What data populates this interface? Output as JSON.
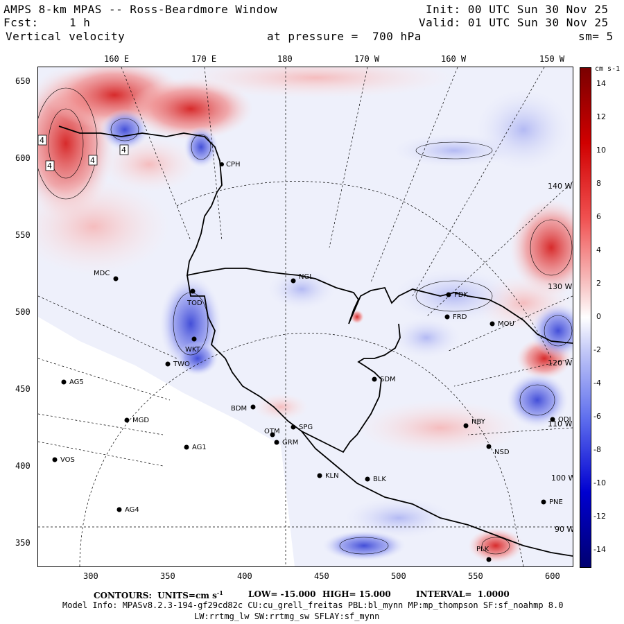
{
  "header": {
    "title": "AMPS 8-km MPAS -- Ross-Beardmore Window",
    "fcst_label": "Fcst:",
    "fcst_value": "1 h",
    "field": "Vertical velocity",
    "pressure_text": "at pressure =  700 hPa",
    "init": "Init: 00 UTC Sun 30 Nov 25",
    "valid": "Valid: 01 UTC Sun 30 Nov 25",
    "smooth": "sm= 5"
  },
  "axes": {
    "top_ticks": [
      "160 E",
      "170 E",
      "180",
      "170 W",
      "160 W",
      "150 W"
    ],
    "left_ticks": [
      "650",
      "600",
      "550",
      "500",
      "450",
      "400",
      "350"
    ],
    "bottom_ticks": [
      "300",
      "350",
      "400",
      "450",
      "500",
      "550",
      "600"
    ],
    "right_lon_labels": [
      "140 W",
      "130 W",
      "120 W",
      "110 W",
      "100 W",
      "90 W"
    ]
  },
  "colorbar": {
    "units": "cm s-1",
    "tick_labels": [
      "14",
      "12",
      "10",
      "8",
      "6",
      "4",
      "2",
      "0",
      "-2",
      "-4",
      "-6",
      "-8",
      "-10",
      "-12",
      "-14"
    ],
    "range": [
      -15,
      15
    ],
    "colors": {
      "pos": "#b30000",
      "neg": "#0000b3",
      "zero": "#ffffff"
    }
  },
  "stations": [
    {
      "name": "CPH"
    },
    {
      "name": "NGL"
    },
    {
      "name": "MDC"
    },
    {
      "name": "FDK"
    },
    {
      "name": "FRD"
    },
    {
      "name": "MOU"
    },
    {
      "name": "TOD"
    },
    {
      "name": "WKT"
    },
    {
      "name": "TWO"
    },
    {
      "name": "SDM"
    },
    {
      "name": "AG5"
    },
    {
      "name": "BDM"
    },
    {
      "name": "MGD"
    },
    {
      "name": "OTM"
    },
    {
      "name": "SPG"
    },
    {
      "name": "GRM"
    },
    {
      "name": "NBY"
    },
    {
      "name": "AG1"
    },
    {
      "name": "NSD"
    },
    {
      "name": "VOS"
    },
    {
      "name": "KLN"
    },
    {
      "name": "BLK"
    },
    {
      "name": "AG4"
    },
    {
      "name": "PNE"
    },
    {
      "name": "PLK"
    },
    {
      "name": "ODI"
    }
  ],
  "extrema_labels": [
    "4",
    "4",
    "4",
    "4"
  ],
  "footer": {
    "contours": "CONTOURS:  UNITS=cm s",
    "contours_sup": "-1",
    "low": "LOW= -15.000",
    "high": "HIGH= 15.000",
    "interval": "INTERVAL=  1.0000",
    "model_info": "Model Info: MPASv8.2.3-194-gf29cd82c CU:cu_grell_freitas PBL:bl_mynn MP:mp_thompson SF:sf_noahmp 8.0",
    "model_info2": "LW:rrtmg_lw SW:rrtmg_sw SFLAY:sf_mynn"
  }
}
